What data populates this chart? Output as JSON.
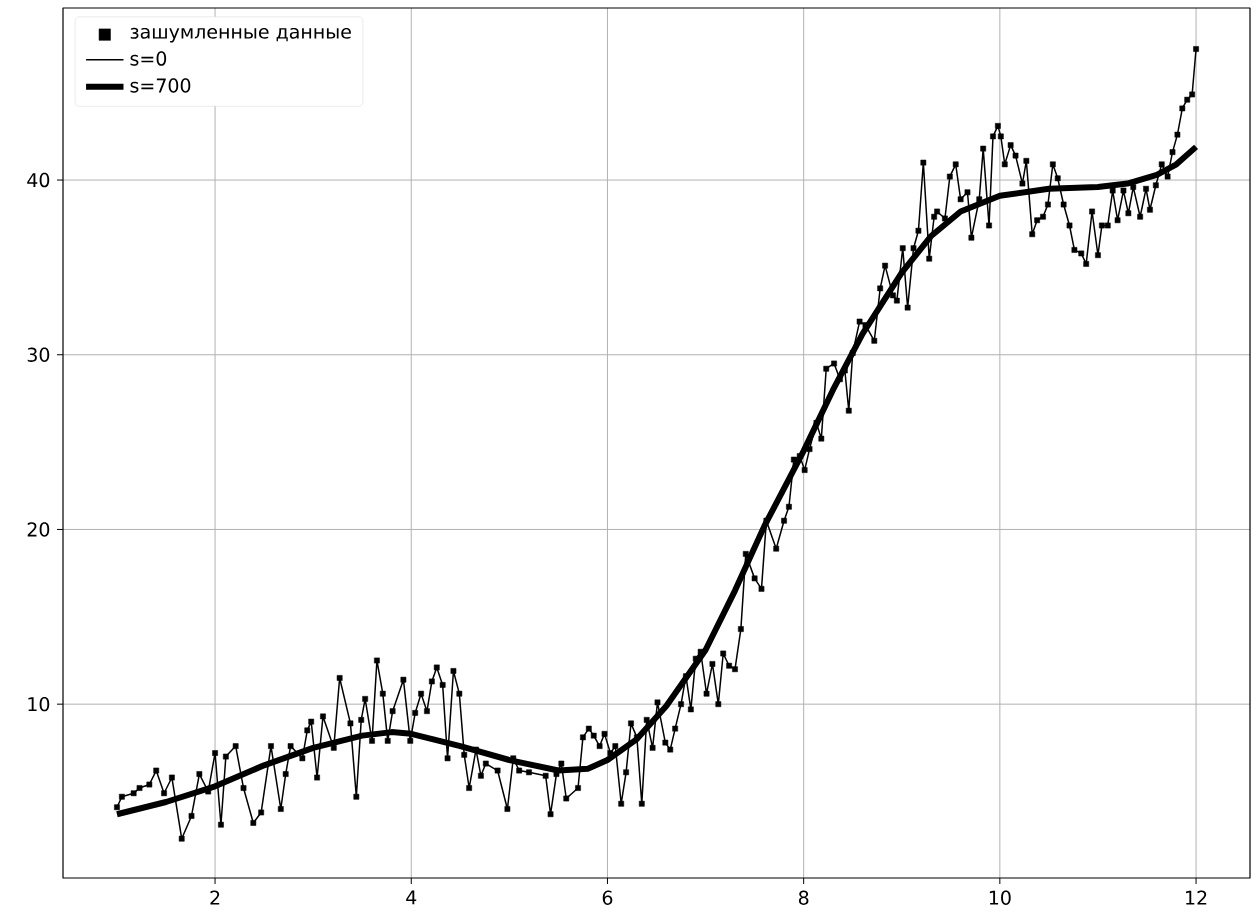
{
  "chart_data": {
    "type": "line",
    "xlim": [
      0.45,
      12.55
    ],
    "ylim": [
      0.05,
      49.85
    ],
    "xticks": [
      2,
      4,
      6,
      8,
      10,
      12
    ],
    "yticks": [
      10,
      20,
      30,
      40
    ],
    "grid": true,
    "legend": "top left",
    "series": [
      {
        "name": "зашумленные данные",
        "type": "scatter",
        "marker": "square",
        "color": "#000000",
        "x": [
          1.0,
          1.05,
          1.17,
          1.23,
          1.33,
          1.4,
          1.48,
          1.56,
          1.66,
          1.76,
          1.84,
          1.93,
          2.0,
          2.06,
          2.11,
          2.21,
          2.29,
          2.39,
          2.47,
          2.57,
          2.67,
          2.72,
          2.77,
          2.89,
          2.94,
          2.98,
          3.04,
          3.1,
          3.21,
          3.27,
          3.38,
          3.44,
          3.49,
          3.53,
          3.6,
          3.65,
          3.71,
          3.76,
          3.81,
          3.92,
          3.99,
          4.04,
          4.1,
          4.16,
          4.21,
          4.26,
          4.32,
          4.37,
          4.43,
          4.49,
          4.54,
          4.59,
          4.66,
          4.71,
          4.76,
          4.88,
          4.98,
          5.04,
          5.1,
          5.2,
          5.37,
          5.42,
          5.48,
          5.53,
          5.58,
          5.7,
          5.75,
          5.81,
          5.86,
          5.92,
          5.97,
          6.03,
          6.08,
          6.14,
          6.19,
          6.24,
          6.3,
          6.35,
          6.4,
          6.46,
          6.51,
          6.59,
          6.64,
          6.69,
          6.75,
          6.8,
          6.85,
          6.9,
          6.95,
          7.01,
          7.07,
          7.13,
          7.18,
          7.24,
          7.3,
          7.36,
          7.41,
          7.5,
          7.57,
          7.62,
          7.72,
          7.8,
          7.85,
          7.9,
          7.96,
          8.01,
          8.06,
          8.13,
          8.18,
          8.23,
          8.31,
          8.37,
          8.42,
          8.46,
          8.5,
          8.57,
          8.63,
          8.72,
          8.78,
          8.83,
          8.91,
          8.95,
          9.01,
          9.06,
          9.12,
          9.17,
          9.22,
          9.28,
          9.33,
          9.36,
          9.44,
          9.49,
          9.55,
          9.6,
          9.67,
          9.71,
          9.79,
          9.83,
          9.89,
          9.93,
          9.98,
          10.01,
          10.05,
          10.11,
          10.16,
          10.23,
          10.27,
          10.33,
          10.38,
          10.44,
          10.49,
          10.54,
          10.59,
          10.65,
          10.71,
          10.76,
          10.83,
          10.88,
          10.94,
          11.0,
          11.04,
          11.1,
          11.15,
          11.2,
          11.26,
          11.31,
          11.36,
          11.43,
          11.49,
          11.53,
          11.59,
          11.65,
          11.71,
          11.76,
          11.81,
          11.86,
          11.91,
          11.96,
          12.0
        ],
        "values": [
          4.1,
          4.7,
          4.9,
          5.2,
          5.4,
          6.2,
          4.9,
          5.8,
          2.3,
          3.6,
          6.0,
          5.0,
          7.2,
          3.1,
          7.0,
          7.6,
          5.2,
          3.2,
          3.8,
          7.6,
          4.0,
          6.0,
          7.6,
          6.9,
          8.5,
          9.0,
          5.8,
          9.3,
          7.5,
          11.5,
          8.9,
          4.7,
          9.1,
          10.3,
          7.9,
          12.5,
          10.6,
          7.9,
          9.6,
          11.4,
          7.9,
          9.5,
          10.6,
          9.6,
          11.3,
          12.1,
          11.1,
          6.9,
          11.9,
          10.6,
          7.1,
          5.2,
          7.4,
          5.9,
          6.6,
          6.2,
          4.0,
          6.9,
          6.2,
          6.1,
          5.9,
          3.7,
          6.0,
          6.6,
          4.6,
          5.2,
          8.1,
          8.6,
          8.2,
          7.6,
          8.3,
          7.2,
          7.6,
          4.3,
          6.1,
          8.9,
          8.1,
          4.3,
          9.1,
          7.5,
          10.1,
          7.8,
          7.4,
          8.6,
          10.0,
          11.6,
          9.7,
          12.6,
          13.0,
          10.6,
          12.3,
          10.0,
          12.9,
          12.2,
          12.0,
          14.3,
          18.6,
          17.2,
          16.6,
          20.5,
          18.9,
          20.5,
          21.3,
          24.0,
          24.2,
          23.4,
          24.6,
          26.1,
          25.2,
          29.2,
          29.5,
          28.6,
          29.1,
          26.8,
          30.1,
          31.9,
          31.7,
          30.8,
          33.8,
          35.1,
          33.4,
          33.1,
          36.1,
          32.7,
          36.1,
          37.1,
          41.0,
          35.5,
          37.9,
          38.2,
          37.8,
          40.2,
          40.9,
          38.9,
          39.3,
          36.7,
          38.9,
          41.8,
          37.4,
          42.5,
          43.1,
          42.5,
          40.9,
          42.0,
          41.4,
          39.8,
          41.1,
          36.9,
          37.7,
          37.9,
          38.6,
          40.9,
          40.1,
          38.6,
          37.4,
          36.0,
          35.8,
          35.2,
          38.2,
          35.7,
          37.4,
          37.4,
          39.4,
          37.7,
          39.4,
          38.1,
          39.6,
          37.9,
          39.5,
          38.3,
          39.7,
          40.9,
          40.2,
          41.6,
          42.6,
          44.1,
          44.6,
          44.9,
          47.5
        ]
      },
      {
        "name": "s=0",
        "marker": "none",
        "color": "#000000",
        "x": [
          1.0,
          1.05,
          1.17,
          1.23,
          1.33,
          1.4,
          1.48,
          1.56,
          1.66,
          1.76,
          1.84,
          1.93,
          2.0,
          2.06,
          2.11,
          2.21,
          2.29,
          2.39,
          2.47,
          2.57,
          2.67,
          2.72,
          2.77,
          2.89,
          2.94,
          2.98,
          3.04,
          3.1,
          3.21,
          3.27,
          3.38,
          3.44,
          3.49,
          3.53,
          3.6,
          3.65,
          3.71,
          3.76,
          3.81,
          3.92,
          3.99,
          4.04,
          4.1,
          4.16,
          4.21,
          4.26,
          4.32,
          4.37,
          4.43,
          4.49,
          4.54,
          4.59,
          4.66,
          4.71,
          4.76,
          4.88,
          4.98,
          5.04,
          5.1,
          5.2,
          5.37,
          5.42,
          5.48,
          5.53,
          5.58,
          5.7,
          5.75,
          5.81,
          5.86,
          5.92,
          5.97,
          6.03,
          6.08,
          6.14,
          6.19,
          6.24,
          6.3,
          6.35,
          6.4,
          6.46,
          6.51,
          6.59,
          6.64,
          6.69,
          6.75,
          6.8,
          6.85,
          6.9,
          6.95,
          7.01,
          7.07,
          7.13,
          7.18,
          7.24,
          7.3,
          7.36,
          7.41,
          7.5,
          7.57,
          7.62,
          7.72,
          7.8,
          7.85,
          7.9,
          7.96,
          8.01,
          8.06,
          8.13,
          8.18,
          8.23,
          8.31,
          8.37,
          8.42,
          8.46,
          8.5,
          8.57,
          8.63,
          8.72,
          8.78,
          8.83,
          8.91,
          8.95,
          9.01,
          9.06,
          9.12,
          9.17,
          9.22,
          9.28,
          9.33,
          9.36,
          9.44,
          9.49,
          9.55,
          9.6,
          9.67,
          9.71,
          9.79,
          9.83,
          9.89,
          9.93,
          9.98,
          10.01,
          10.05,
          10.11,
          10.16,
          10.23,
          10.27,
          10.33,
          10.38,
          10.44,
          10.49,
          10.54,
          10.59,
          10.65,
          10.71,
          10.76,
          10.83,
          10.88,
          10.94,
          11.0,
          11.04,
          11.1,
          11.15,
          11.2,
          11.26,
          11.31,
          11.36,
          11.43,
          11.49,
          11.53,
          11.59,
          11.65,
          11.71,
          11.76,
          11.81,
          11.86,
          11.91,
          11.96,
          12.0
        ],
        "values": [
          4.1,
          4.7,
          4.9,
          5.2,
          5.4,
          6.2,
          4.9,
          5.8,
          2.3,
          3.6,
          6.0,
          5.0,
          7.2,
          3.1,
          7.0,
          7.6,
          5.2,
          3.2,
          3.8,
          7.6,
          4.0,
          6.0,
          7.6,
          6.9,
          8.5,
          9.0,
          5.8,
          9.3,
          7.5,
          11.5,
          8.9,
          4.7,
          9.1,
          10.3,
          7.9,
          12.5,
          10.6,
          7.9,
          9.6,
          11.4,
          7.9,
          9.5,
          10.6,
          9.6,
          11.3,
          12.1,
          11.1,
          6.9,
          11.9,
          10.6,
          7.1,
          5.2,
          7.4,
          5.9,
          6.6,
          6.2,
          4.0,
          6.9,
          6.2,
          6.1,
          5.9,
          3.7,
          6.0,
          6.6,
          4.6,
          5.2,
          8.1,
          8.6,
          8.2,
          7.6,
          8.3,
          7.2,
          7.6,
          4.3,
          6.1,
          8.9,
          8.1,
          4.3,
          9.1,
          7.5,
          10.1,
          7.8,
          7.4,
          8.6,
          10.0,
          11.6,
          9.7,
          12.6,
          13.0,
          10.6,
          12.3,
          10.0,
          12.9,
          12.2,
          12.0,
          14.3,
          18.6,
          17.2,
          16.6,
          20.5,
          18.9,
          20.5,
          21.3,
          24.0,
          24.2,
          23.4,
          24.6,
          26.1,
          25.2,
          29.2,
          29.5,
          28.6,
          29.1,
          26.8,
          30.1,
          31.9,
          31.7,
          30.8,
          33.8,
          35.1,
          33.4,
          33.1,
          36.1,
          32.7,
          36.1,
          37.1,
          41.0,
          35.5,
          37.9,
          38.2,
          37.8,
          40.2,
          40.9,
          38.9,
          39.3,
          36.7,
          38.9,
          41.8,
          37.4,
          42.5,
          43.1,
          42.5,
          40.9,
          42.0,
          41.4,
          39.8,
          41.1,
          36.9,
          37.7,
          37.9,
          38.6,
          40.9,
          40.1,
          38.6,
          37.4,
          36.0,
          35.8,
          35.2,
          38.2,
          35.7,
          37.4,
          37.4,
          39.4,
          37.7,
          39.4,
          38.1,
          39.6,
          37.9,
          39.5,
          38.3,
          39.7,
          40.9,
          40.2,
          41.6,
          42.6,
          44.1,
          44.6,
          44.9,
          47.5
        ]
      },
      {
        "name": "s=700",
        "marker": "none",
        "color": "#000000",
        "x": [
          1.0,
          1.5,
          2.0,
          2.5,
          3.0,
          3.5,
          3.8,
          4.0,
          4.5,
          5.0,
          5.5,
          5.8,
          6.0,
          6.3,
          6.6,
          7.0,
          7.3,
          7.6,
          8.0,
          8.3,
          8.6,
          9.0,
          9.3,
          9.6,
          10.0,
          10.5,
          11.0,
          11.3,
          11.6,
          11.8,
          12.0
        ],
        "values": [
          3.7,
          4.4,
          5.3,
          6.5,
          7.5,
          8.2,
          8.4,
          8.3,
          7.6,
          6.8,
          6.2,
          6.3,
          6.8,
          8.0,
          9.9,
          13.1,
          16.5,
          20.2,
          24.5,
          28.0,
          31.2,
          34.7,
          36.8,
          38.2,
          39.1,
          39.5,
          39.6,
          39.8,
          40.3,
          40.9,
          41.9
        ]
      }
    ]
  }
}
